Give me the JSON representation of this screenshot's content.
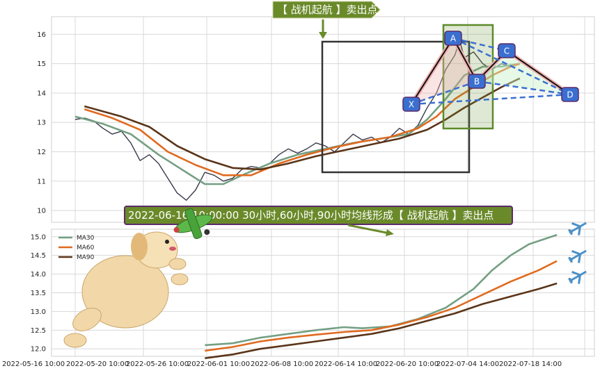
{
  "signal_label": "【 战机起航 】卖出点",
  "banner_text": "2022-06-16 10:00:00 30小时,60小时,90小时均线形成【 战机起航 】卖出点",
  "chart_data": [
    {
      "type": "line",
      "panel": "price",
      "ylim": [
        9.6,
        16.6
      ],
      "yticks": [
        10,
        11,
        12,
        13,
        14,
        15,
        16
      ],
      "series": [
        {
          "name": "price",
          "color": "#3a3a4a",
          "points": [
            [
              0,
              13.1
            ],
            [
              2,
              13.15
            ],
            [
              4,
              13.05
            ],
            [
              6,
              12.8
            ],
            [
              8,
              12.6
            ],
            [
              10,
              12.7
            ],
            [
              12,
              12.3
            ],
            [
              14,
              11.7
            ],
            [
              16,
              11.9
            ],
            [
              18,
              11.6
            ],
            [
              20,
              11.1
            ],
            [
              22,
              10.6
            ],
            [
              24,
              10.35
            ],
            [
              26,
              10.7
            ],
            [
              28,
              11.3
            ],
            [
              30,
              11.2
            ],
            [
              32,
              11.0
            ],
            [
              34,
              11.1
            ],
            [
              36,
              11.4
            ],
            [
              38,
              11.5
            ],
            [
              40,
              11.45
            ],
            [
              42,
              11.6
            ],
            [
              44,
              11.9
            ],
            [
              46,
              12.1
            ],
            [
              48,
              11.95
            ],
            [
              50,
              12.1
            ],
            [
              52,
              12.3
            ],
            [
              54,
              12.2
            ],
            [
              56,
              12.0
            ],
            [
              58,
              12.3
            ],
            [
              60,
              12.6
            ],
            [
              62,
              12.4
            ],
            [
              64,
              12.5
            ],
            [
              66,
              12.3
            ],
            [
              68,
              12.5
            ],
            [
              70,
              12.8
            ],
            [
              72,
              12.6
            ],
            [
              74,
              12.9
            ],
            [
              76,
              13.5
            ],
            [
              78,
              14.0
            ],
            [
              80,
              14.8
            ],
            [
              82,
              15.3
            ],
            [
              83,
              15.8
            ],
            [
              84,
              15.2
            ],
            [
              86,
              15.4
            ],
            [
              88,
              15.0
            ],
            [
              90,
              14.8
            ],
            [
              92,
              15.0
            ],
            [
              94,
              14.9
            ]
          ]
        },
        {
          "name": "MA30",
          "color": "#749f83",
          "points": [
            [
              0,
              13.2
            ],
            [
              6,
              12.95
            ],
            [
              12,
              12.6
            ],
            [
              18,
              11.9
            ],
            [
              24,
              11.3
            ],
            [
              28,
              10.9
            ],
            [
              32,
              10.9
            ],
            [
              36,
              11.2
            ],
            [
              42,
              11.6
            ],
            [
              48,
              11.9
            ],
            [
              54,
              12.1
            ],
            [
              60,
              12.3
            ],
            [
              66,
              12.45
            ],
            [
              72,
              12.6
            ],
            [
              76,
              13.1
            ],
            [
              80,
              13.8
            ],
            [
              84,
              14.6
            ],
            [
              88,
              14.9
            ],
            [
              92,
              14.9
            ],
            [
              96,
              15.0
            ]
          ]
        },
        {
          "name": "MA60",
          "color": "#e06a1f",
          "points": [
            [
              2,
              13.45
            ],
            [
              8,
              13.15
            ],
            [
              14,
              12.75
            ],
            [
              20,
              12.0
            ],
            [
              26,
              11.55
            ],
            [
              32,
              11.2
            ],
            [
              38,
              11.2
            ],
            [
              44,
              11.6
            ],
            [
              50,
              11.9
            ],
            [
              56,
              12.15
            ],
            [
              62,
              12.35
            ],
            [
              68,
              12.5
            ],
            [
              74,
              12.8
            ],
            [
              78,
              13.2
            ],
            [
              82,
              13.8
            ],
            [
              86,
              14.2
            ],
            [
              90,
              14.6
            ],
            [
              94,
              14.9
            ],
            [
              96,
              15.0
            ]
          ]
        },
        {
          "name": "MA90",
          "color": "#5a3418",
          "points": [
            [
              2,
              13.55
            ],
            [
              10,
              13.2
            ],
            [
              16,
              12.85
            ],
            [
              22,
              12.2
            ],
            [
              28,
              11.75
            ],
            [
              34,
              11.45
            ],
            [
              40,
              11.4
            ],
            [
              46,
              11.6
            ],
            [
              52,
              11.85
            ],
            [
              58,
              12.05
            ],
            [
              64,
              12.25
            ],
            [
              70,
              12.45
            ],
            [
              76,
              12.75
            ],
            [
              80,
              13.1
            ],
            [
              84,
              13.5
            ],
            [
              88,
              13.85
            ],
            [
              92,
              14.2
            ],
            [
              96,
              14.5
            ]
          ]
        }
      ]
    },
    {
      "type": "line",
      "panel": "moving-averages",
      "ylim": [
        11.8,
        15.2
      ],
      "yticks": [
        12.0,
        12.5,
        13.0,
        13.5,
        14.0,
        14.5,
        15.0
      ],
      "xticks": [
        "2022-05-16 10:00",
        "2022-05-20 10:00",
        "2022-05-26 10:00",
        "2022-06-01 10:00",
        "2022-06-08 10:00",
        "2022-06-14 10:00",
        "2022-06-20 10:00",
        "2022-07-04 14:00",
        "2022-07-18 14:00"
      ],
      "legend": [
        "MA30",
        "MA60",
        "MA90"
      ],
      "legend_position": "top-left",
      "series": [
        {
          "name": "MA30",
          "color": "#749f83",
          "points": [
            [
              28,
              12.1
            ],
            [
              34,
              12.15
            ],
            [
              40,
              12.3
            ],
            [
              46,
              12.4
            ],
            [
              52,
              12.5
            ],
            [
              58,
              12.58
            ],
            [
              62,
              12.55
            ],
            [
              68,
              12.6
            ],
            [
              74,
              12.8
            ],
            [
              80,
              13.1
            ],
            [
              86,
              13.6
            ],
            [
              90,
              14.1
            ],
            [
              94,
              14.5
            ],
            [
              98,
              14.8
            ],
            [
              104,
              15.05
            ]
          ]
        },
        {
          "name": "MA60",
          "color": "#e06a1f",
          "points": [
            [
              28,
              11.95
            ],
            [
              34,
              12.05
            ],
            [
              40,
              12.2
            ],
            [
              46,
              12.3
            ],
            [
              52,
              12.38
            ],
            [
              58,
              12.45
            ],
            [
              64,
              12.5
            ],
            [
              70,
              12.65
            ],
            [
              76,
              12.85
            ],
            [
              82,
              13.1
            ],
            [
              88,
              13.45
            ],
            [
              94,
              13.8
            ],
            [
              100,
              14.1
            ],
            [
              104,
              14.35
            ]
          ]
        },
        {
          "name": "MA90",
          "color": "#5a3418",
          "points": [
            [
              28,
              11.75
            ],
            [
              34,
              11.85
            ],
            [
              40,
              12.0
            ],
            [
              46,
              12.1
            ],
            [
              52,
              12.2
            ],
            [
              58,
              12.3
            ],
            [
              64,
              12.4
            ],
            [
              70,
              12.55
            ],
            [
              76,
              12.75
            ],
            [
              82,
              12.95
            ],
            [
              88,
              13.2
            ],
            [
              94,
              13.4
            ],
            [
              100,
              13.6
            ],
            [
              104,
              13.75
            ]
          ]
        }
      ]
    }
  ],
  "pattern_points": [
    {
      "label": "X",
      "x": 80,
      "y": 13.5
    },
    {
      "label": "A",
      "x": 83,
      "y": 15.8
    },
    {
      "label": "B",
      "x": 88,
      "y": 14.3
    },
    {
      "label": "C",
      "x": 94,
      "y": 15.3
    },
    {
      "label": "D",
      "x": 104,
      "y": 13.95
    }
  ]
}
